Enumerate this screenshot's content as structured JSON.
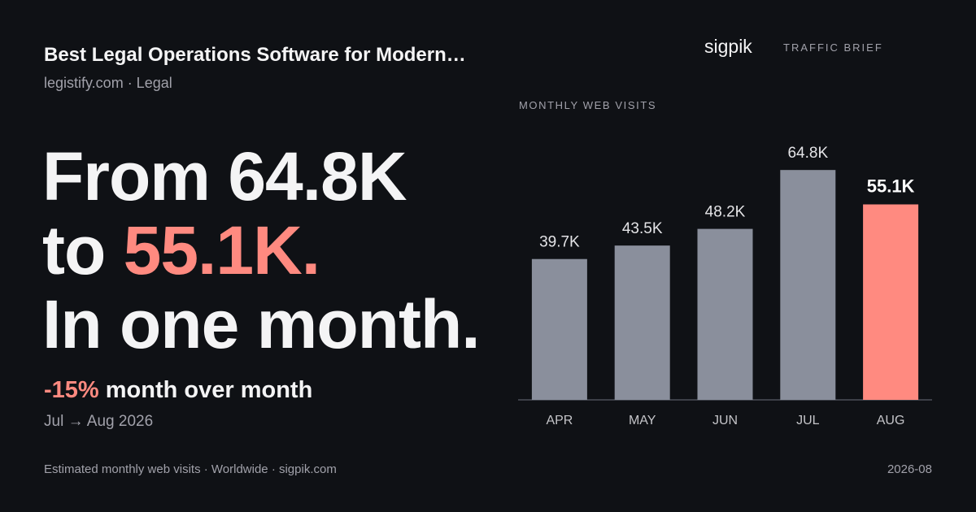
{
  "header": {
    "title": "Best Legal Operations Software for Modern…",
    "subtitle": "legistify.com · Legal"
  },
  "brand": {
    "name": "sigpik",
    "tag": "TRAFFIC BRIEF"
  },
  "headline": {
    "line1": "From 64.8K",
    "line2_prefix": "to ",
    "line2_value": "55.1K.",
    "line3": "In one month."
  },
  "change": {
    "value": "-15%",
    "label": " month over month",
    "period": "Jul → Aug 2026"
  },
  "footer": {
    "note": "Estimated monthly web visits · Worldwide · sigpik.com",
    "date": "2026-08"
  },
  "colors": {
    "background": "#0f1115",
    "bar": "#8a8f9c",
    "highlight": "#ff8a80"
  },
  "chart_data": {
    "type": "bar",
    "title": "MONTHLY WEB VISITS",
    "categories": [
      "APR",
      "MAY",
      "JUN",
      "JUL",
      "AUG"
    ],
    "values": [
      39.7,
      43.5,
      48.2,
      64.8,
      55.1
    ],
    "data_labels": [
      "39.7K",
      "43.5K",
      "48.2K",
      "64.8K",
      "55.1K"
    ],
    "unit": "K",
    "highlight_index": 4,
    "ylim": [
      0,
      72.4
    ],
    "grid": false,
    "legend": "none"
  }
}
